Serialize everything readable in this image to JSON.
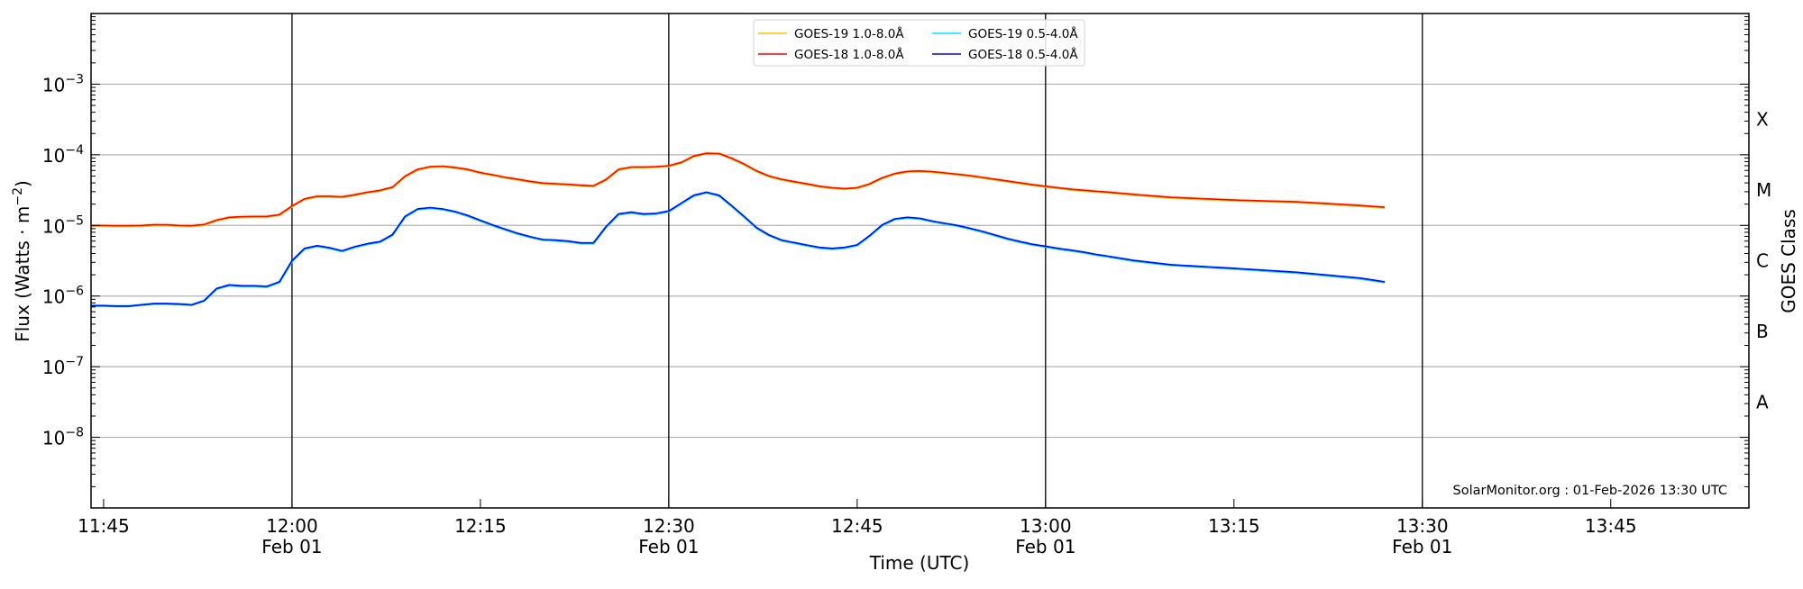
{
  "chart_data": {
    "type": "line",
    "title": "",
    "xlabel": "Time (UTC)",
    "ylabel": {
      "prefix": "Flux (Watts · m",
      "exp": "−2",
      "suffix": ")"
    },
    "y2label": "GOES Class",
    "yscale": "log",
    "ylim": [
      1e-09,
      0.01
    ],
    "xlim": [
      "11:44",
      "13:56"
    ],
    "grid": "horizontal at decades",
    "legend_placement": "top-center",
    "yticks": [
      {
        "value": 0.001,
        "base": "10",
        "exp": "−3"
      },
      {
        "value": 0.0001,
        "base": "10",
        "exp": "−4"
      },
      {
        "value": 1e-05,
        "base": "10",
        "exp": "−5"
      },
      {
        "value": 1e-06,
        "base": "10",
        "exp": "−6"
      },
      {
        "value": 1e-07,
        "base": "10",
        "exp": "−7"
      },
      {
        "value": 1e-08,
        "base": "10",
        "exp": "−8"
      }
    ],
    "goes_classes": [
      {
        "label": "X",
        "value": 0.000316
      },
      {
        "label": "M",
        "value": 3.16e-05
      },
      {
        "label": "C",
        "value": 3.16e-06
      },
      {
        "label": "B",
        "value": 3.16e-07
      },
      {
        "label": "A",
        "value": 3.16e-08
      }
    ],
    "xticks": [
      {
        "time": "11:45",
        "label": "11:45",
        "sub": ""
      },
      {
        "time": "12:00",
        "label": "12:00",
        "sub": "Feb 01"
      },
      {
        "time": "12:15",
        "label": "12:15",
        "sub": ""
      },
      {
        "time": "12:30",
        "label": "12:30",
        "sub": "Feb 01"
      },
      {
        "time": "12:45",
        "label": "12:45",
        "sub": ""
      },
      {
        "time": "13:00",
        "label": "13:00",
        "sub": "Feb 01"
      },
      {
        "time": "13:15",
        "label": "13:15",
        "sub": ""
      },
      {
        "time": "13:30",
        "label": "13:30",
        "sub": "Feb 01"
      },
      {
        "time": "13:45",
        "label": "13:45",
        "sub": ""
      }
    ],
    "vlines": [
      "12:00",
      "12:30",
      "13:00",
      "13:30"
    ],
    "annotation": "SolarMonitor.org : 01-Feb-2026 13:30 UTC",
    "x": [
      "11:44",
      "11:45",
      "11:46",
      "11:47",
      "11:48",
      "11:49",
      "11:50",
      "11:51",
      "11:52",
      "11:53",
      "11:54",
      "11:55",
      "11:56",
      "11:57",
      "11:58",
      "11:59",
      "12:00",
      "12:01",
      "12:02",
      "12:03",
      "12:04",
      "12:05",
      "12:06",
      "12:07",
      "12:08",
      "12:09",
      "12:10",
      "12:11",
      "12:12",
      "12:13",
      "12:14",
      "12:15",
      "12:16",
      "12:17",
      "12:18",
      "12:19",
      "12:20",
      "12:21",
      "12:22",
      "12:23",
      "12:24",
      "12:25",
      "12:26",
      "12:27",
      "12:28",
      "12:29",
      "12:30",
      "12:31",
      "12:32",
      "12:33",
      "12:34",
      "12:35",
      "12:36",
      "12:37",
      "12:38",
      "12:39",
      "12:40",
      "12:41",
      "12:42",
      "12:43",
      "12:44",
      "12:45",
      "12:46",
      "12:47",
      "12:48",
      "12:49",
      "12:50",
      "12:51",
      "12:52",
      "12:53",
      "12:54",
      "12:55",
      "12:56",
      "12:57",
      "12:58",
      "12:59",
      "13:00",
      "13:01",
      "13:02",
      "13:03",
      "13:04",
      "13:05",
      "13:07",
      "13:10",
      "13:15",
      "13:20",
      "13:25",
      "13:27"
    ],
    "series": [
      {
        "name": "GOES-19 1.0-8.0Å",
        "color": "#ffc000",
        "values": [
          1e-05,
          1e-05,
          9.9e-06,
          9.9e-06,
          1e-05,
          1.02e-05,
          1.02e-05,
          1e-05,
          9.9e-06,
          1.03e-05,
          1.19e-05,
          1.3e-05,
          1.33e-05,
          1.34e-05,
          1.34e-05,
          1.42e-05,
          1.88e-05,
          2.38e-05,
          2.59e-05,
          2.59e-05,
          2.54e-05,
          2.72e-05,
          2.95e-05,
          3.13e-05,
          3.48e-05,
          4.96e-05,
          6.2e-05,
          6.8e-05,
          6.9e-05,
          6.6e-05,
          6.2e-05,
          5.6e-05,
          5.2e-05,
          4.8e-05,
          4.5e-05,
          4.2e-05,
          3.97e-05,
          3.89e-05,
          3.81e-05,
          3.7e-05,
          3.64e-05,
          4.46e-05,
          6.2e-05,
          6.7e-05,
          6.7e-05,
          6.8e-05,
          7e-05,
          7.8e-05,
          9.6e-05,
          0.000106,
          0.000105,
          8.97e-05,
          7.4e-05,
          5.9e-05,
          5e-05,
          4.5e-05,
          4.16e-05,
          3.88e-05,
          3.59e-05,
          3.42e-05,
          3.32e-05,
          3.42e-05,
          3.88e-05,
          4.73e-05,
          5.43e-05,
          5.82e-05,
          5.9e-05,
          5.76e-05,
          5.53e-05,
          5.32e-05,
          5.07e-05,
          4.78e-05,
          4.5e-05,
          4.24e-05,
          4e-05,
          3.77e-05,
          3.59e-05,
          3.42e-05,
          3.25e-05,
          3.15e-05,
          3.05e-05,
          2.96e-05,
          2.75e-05,
          2.5e-05,
          2.29e-05,
          2.16e-05,
          1.92e-05,
          1.81e-05
        ]
      },
      {
        "name": "GOES-19 0.5-4.0Å",
        "color": "#00e5ff",
        "values": [
          7.4e-07,
          7.4e-07,
          7.3e-07,
          7.3e-07,
          7.6e-07,
          7.9e-07,
          7.9e-07,
          7.8e-07,
          7.6e-07,
          8.7e-07,
          1.28e-06,
          1.44e-06,
          1.4e-06,
          1.4e-06,
          1.37e-06,
          1.59e-06,
          3.16e-06,
          4.73e-06,
          5.16e-06,
          4.82e-06,
          4.37e-06,
          5e-06,
          5.5e-06,
          5.9e-06,
          7.4e-06,
          1.34e-05,
          1.71e-05,
          1.79e-05,
          1.71e-05,
          1.57e-05,
          1.38e-05,
          1.18e-05,
          1.01e-05,
          8.8e-06,
          7.7e-06,
          6.9e-06,
          6.3e-06,
          6.2e-06,
          6e-06,
          5.65e-06,
          5.65e-06,
          9.6e-06,
          1.45e-05,
          1.54e-05,
          1.45e-05,
          1.48e-05,
          1.6e-05,
          2.07e-05,
          2.67e-05,
          2.95e-05,
          2.67e-05,
          1.91e-05,
          1.34e-05,
          9.3e-06,
          7.3e-06,
          6.2e-06,
          5.7e-06,
          5.27e-06,
          4.88e-06,
          4.73e-06,
          4.88e-06,
          5.3e-06,
          7.2e-06,
          1.02e-05,
          1.24e-05,
          1.3e-05,
          1.26e-05,
          1.15e-05,
          1.07e-05,
          1e-05,
          9.1e-06,
          8.2e-06,
          7.3e-06,
          6.5e-06,
          5.9e-06,
          5.4e-06,
          5.07e-06,
          4.73e-06,
          4.47e-06,
          4.2e-06,
          3.9e-06,
          3.66e-06,
          3.2e-06,
          2.78e-06,
          2.47e-06,
          2.17e-06,
          1.8e-06,
          1.59e-06
        ]
      },
      {
        "name": "GOES-18 1.0-8.0Å",
        "color": "#ff0000",
        "values": [
          1e-05,
          1e-05,
          9.9e-06,
          9.9e-06,
          1e-05,
          1.02e-05,
          1.02e-05,
          1e-05,
          9.9e-06,
          1.03e-05,
          1.19e-05,
          1.3e-05,
          1.33e-05,
          1.34e-05,
          1.34e-05,
          1.42e-05,
          1.88e-05,
          2.38e-05,
          2.59e-05,
          2.59e-05,
          2.54e-05,
          2.72e-05,
          2.95e-05,
          3.13e-05,
          3.48e-05,
          4.96e-05,
          6.2e-05,
          6.8e-05,
          6.9e-05,
          6.6e-05,
          6.2e-05,
          5.6e-05,
          5.2e-05,
          4.8e-05,
          4.5e-05,
          4.2e-05,
          3.97e-05,
          3.89e-05,
          3.81e-05,
          3.7e-05,
          3.64e-05,
          4.46e-05,
          6.2e-05,
          6.7e-05,
          6.7e-05,
          6.8e-05,
          7e-05,
          7.8e-05,
          9.6e-05,
          0.000105,
          0.000104,
          8.97e-05,
          7.4e-05,
          5.9e-05,
          5e-05,
          4.5e-05,
          4.16e-05,
          3.88e-05,
          3.59e-05,
          3.42e-05,
          3.32e-05,
          3.42e-05,
          3.88e-05,
          4.73e-05,
          5.43e-05,
          5.82e-05,
          5.9e-05,
          5.76e-05,
          5.53e-05,
          5.32e-05,
          5.07e-05,
          4.78e-05,
          4.5e-05,
          4.24e-05,
          4e-05,
          3.77e-05,
          3.59e-05,
          3.42e-05,
          3.25e-05,
          3.15e-05,
          3.05e-05,
          2.96e-05,
          2.75e-05,
          2.5e-05,
          2.29e-05,
          2.16e-05,
          1.92e-05,
          1.81e-05
        ]
      },
      {
        "name": "GOES-18 0.5-4.0Å",
        "color": "#0000ff",
        "values": [
          7.3e-07,
          7.3e-07,
          7.2e-07,
          7.2e-07,
          7.5e-07,
          7.8e-07,
          7.8e-07,
          7.7e-07,
          7.5e-07,
          8.6e-07,
          1.28e-06,
          1.44e-06,
          1.4e-06,
          1.4e-06,
          1.37e-06,
          1.59e-06,
          3.16e-06,
          4.73e-06,
          5.16e-06,
          4.82e-06,
          4.37e-06,
          5e-06,
          5.5e-06,
          5.9e-06,
          7.4e-06,
          1.34e-05,
          1.71e-05,
          1.79e-05,
          1.71e-05,
          1.57e-05,
          1.38e-05,
          1.18e-05,
          1.01e-05,
          8.8e-06,
          7.7e-06,
          6.9e-06,
          6.3e-06,
          6.2e-06,
          6e-06,
          5.65e-06,
          5.65e-06,
          9.6e-06,
          1.45e-05,
          1.54e-05,
          1.45e-05,
          1.48e-05,
          1.6e-05,
          2.07e-05,
          2.67e-05,
          2.95e-05,
          2.67e-05,
          1.91e-05,
          1.34e-05,
          9.3e-06,
          7.3e-06,
          6.2e-06,
          5.7e-06,
          5.27e-06,
          4.88e-06,
          4.73e-06,
          4.88e-06,
          5.3e-06,
          7.2e-06,
          1.02e-05,
          1.24e-05,
          1.3e-05,
          1.26e-05,
          1.15e-05,
          1.07e-05,
          1e-05,
          9.1e-06,
          8.2e-06,
          7.3e-06,
          6.5e-06,
          5.9e-06,
          5.4e-06,
          5.07e-06,
          4.73e-06,
          4.47e-06,
          4.2e-06,
          3.9e-06,
          3.66e-06,
          3.2e-06,
          2.78e-06,
          2.47e-06,
          2.17e-06,
          1.8e-06,
          1.59e-06
        ]
      }
    ]
  }
}
